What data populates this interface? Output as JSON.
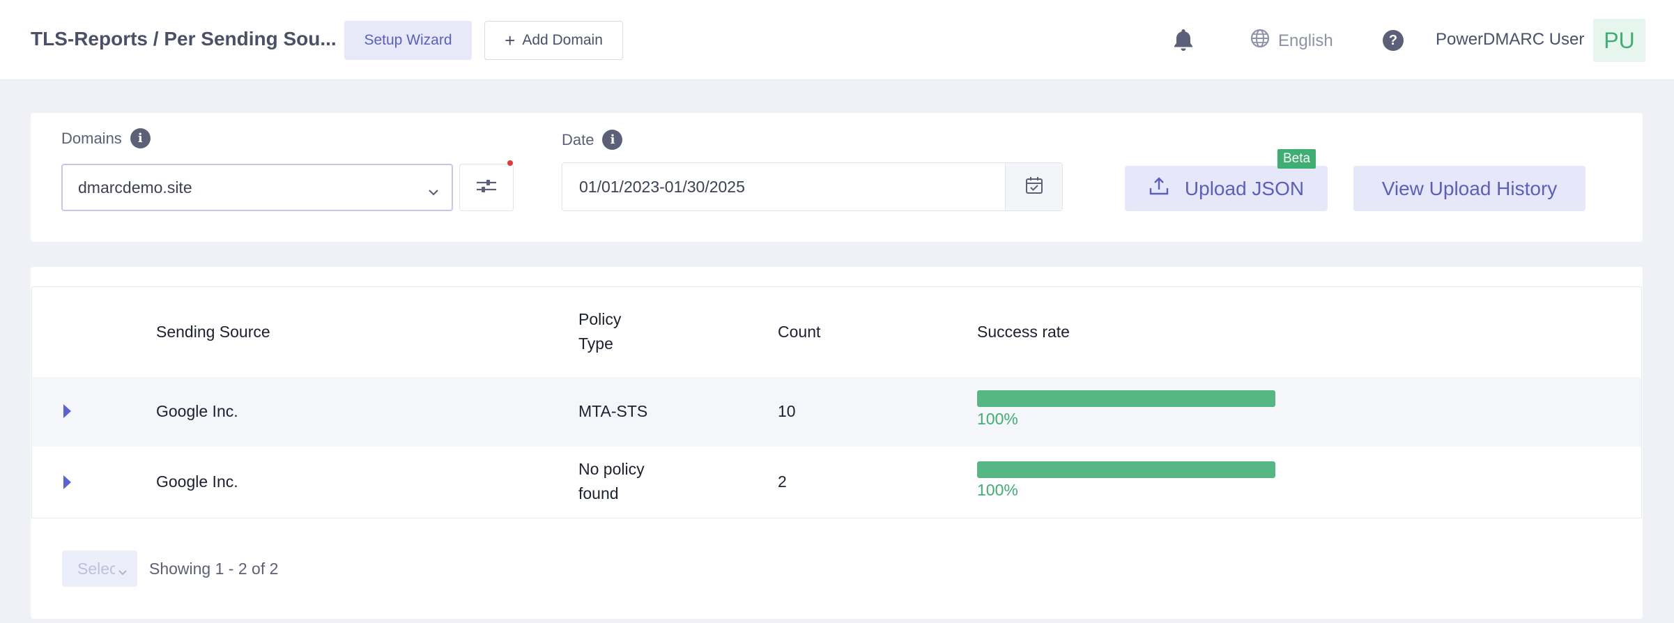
{
  "header": {
    "title": "TLS-Reports / Per Sending Sou...",
    "setup_wizard_label": "Setup Wizard",
    "add_domain_label": "Add Domain",
    "language": "English",
    "user_name": "PowerDMARC User",
    "avatar_initials": "PU"
  },
  "filters": {
    "domains_label": "Domains",
    "domain_value": "dmarcdemo.site",
    "date_label": "Date",
    "date_value": "01/01/2023-01/30/2025",
    "upload_json_label": "Upload JSON",
    "beta_badge": "Beta",
    "view_history_label": "View Upload History"
  },
  "table": {
    "columns": {
      "sending_source": "Sending Source",
      "policy_type_line1": "Policy",
      "policy_type_line2": "Type",
      "count": "Count",
      "success_rate": "Success rate"
    },
    "rows": [
      {
        "source": "Google Inc.",
        "policy_line1": "MTA-STS",
        "policy_line2": "",
        "count": "10",
        "success_rate_label": "100%",
        "success_rate": 1.0
      },
      {
        "source": "Google Inc.",
        "policy_line1": "No policy",
        "policy_line2": "found",
        "count": "2",
        "success_rate_label": "100%",
        "success_rate": 1.0
      }
    ]
  },
  "pagination": {
    "page_size_placeholder": "Select",
    "showing_text": "Showing 1 - 2 of 2"
  },
  "colors": {
    "accent": "#5a5fbf",
    "success": "#3fae73",
    "bar_fill": "#57b784"
  }
}
